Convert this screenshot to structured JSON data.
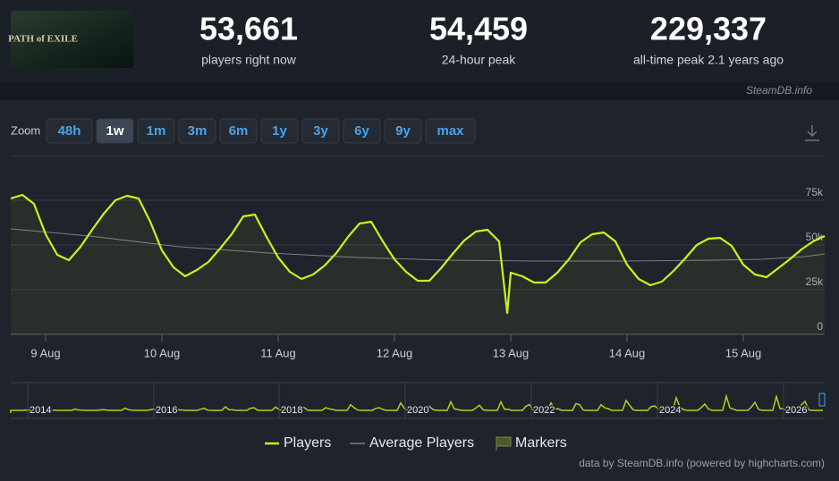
{
  "header": {
    "logo": "PATH of EXILE",
    "stats": [
      {
        "value": "53,661",
        "label": "players right now"
      },
      {
        "value": "54,459",
        "label": "24-hour peak"
      },
      {
        "value": "229,337",
        "label": "all-time peak 2.1 years ago"
      }
    ],
    "watermark": "SteamDB.info"
  },
  "zoom": {
    "label": "Zoom",
    "buttons": [
      "48h",
      "1w",
      "1m",
      "3m",
      "6m",
      "1y",
      "3y",
      "6y",
      "9y",
      "max"
    ],
    "active": "1w"
  },
  "chart_data": {
    "type": "line",
    "x": [
      8.7,
      8.8,
      8.9,
      9,
      9.1,
      9.2,
      9.3,
      9.4,
      9.5,
      9.6,
      9.7,
      9.8,
      9.9,
      10,
      10.1,
      10.2,
      10.3,
      10.4,
      10.5,
      10.6,
      10.7,
      10.8,
      10.9,
      11,
      11.1,
      11.2,
      11.3,
      11.4,
      11.5,
      11.6,
      11.7,
      11.8,
      11.9,
      12,
      12.1,
      12.2,
      12.3,
      12.4,
      12.5,
      12.6,
      12.7,
      12.8,
      12.9,
      12.97,
      13,
      13.1,
      13.2,
      13.3,
      13.4,
      13.5,
      13.6,
      13.7,
      13.8,
      13.9,
      14,
      14.1,
      14.2,
      14.3,
      14.4,
      14.5,
      14.6,
      14.7,
      14.8,
      14.9,
      15,
      15.1,
      15.2,
      15.3,
      15.4,
      15.5,
      15.6,
      15.7
    ],
    "series": [
      {
        "name": "Players",
        "color": "#cdf01a",
        "values": [
          76000,
          78000,
          73000,
          56000,
          44500,
          41500,
          49000,
          58500,
          67500,
          75000,
          77500,
          76000,
          63000,
          47000,
          37500,
          32500,
          36000,
          40500,
          48000,
          56000,
          66000,
          67000,
          54500,
          43000,
          35000,
          31000,
          33500,
          38500,
          45500,
          54500,
          62000,
          63000,
          52000,
          42000,
          35000,
          30000,
          30000,
          37000,
          45000,
          52500,
          57500,
          58500,
          52000,
          12000,
          34500,
          32500,
          29000,
          29000,
          34500,
          42000,
          51500,
          56000,
          57000,
          52000,
          39000,
          31000,
          27500,
          29500,
          35500,
          42500,
          50000,
          53500,
          54000,
          49500,
          39000,
          33500,
          32000,
          37000,
          42000,
          47500,
          52000,
          55000
        ]
      },
      {
        "name": "Average Players",
        "color": "#7a7f88",
        "x": [
          8.7,
          9.38,
          10.15,
          10.92,
          11.68,
          12.45,
          13.22,
          13.99,
          14.76,
          15.15,
          15.53,
          15.7
        ],
        "values": [
          59000,
          55000,
          49000,
          45500,
          43000,
          41500,
          41000,
          41000,
          41500,
          42000,
          43500,
          45000
        ]
      }
    ],
    "markers_label": "Markers",
    "xlim": [
      8.7,
      15.7
    ],
    "xticks": [
      {
        "value": 9,
        "label": "9 Aug"
      },
      {
        "value": 10,
        "label": "10 Aug"
      },
      {
        "value": 11,
        "label": "11 Aug"
      },
      {
        "value": 12,
        "label": "12 Aug"
      },
      {
        "value": 13,
        "label": "13 Aug"
      },
      {
        "value": 14,
        "label": "14 Aug"
      },
      {
        "value": 15,
        "label": "15 Aug"
      }
    ],
    "ylim": [
      0,
      100000
    ],
    "yticks": [
      0,
      {
        "value": 25000,
        "label": "25k"
      },
      {
        "value": 50000,
        "label": "50k"
      },
      {
        "value": 75000,
        "label": "75k"
      }
    ],
    "grid": true
  },
  "navigator": {
    "years": [
      "2014",
      "2016",
      "2018",
      "2020",
      "2022",
      "2024",
      "2026"
    ]
  },
  "credit": "data by SteamDB.info (powered by highcharts.com)"
}
